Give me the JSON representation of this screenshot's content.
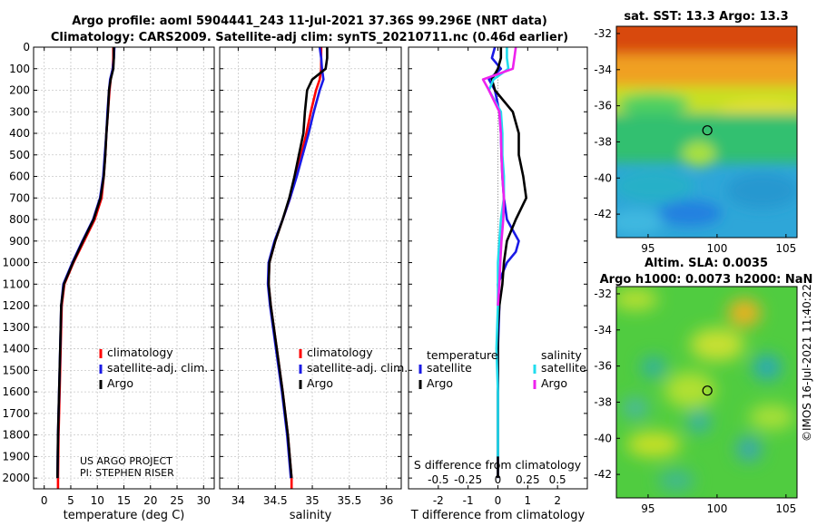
{
  "title": {
    "line1": "Argo profile: aoml 5904441_243 11-Jul-2021 37.36S 99.296E (NRT data)",
    "line2": "Climatology: CARS2009. Satellite-adj clim: synTS_20210711.nc (0.46d earlier)"
  },
  "timestamp": "©IMOS 16-Jul-2021 11:40:22",
  "credit": {
    "line1": "US ARGO PROJECT",
    "line2": "PI: STEPHEN RISER"
  },
  "colors": {
    "climatology": "#ff0000",
    "satellite": "#1a1ae6",
    "argo": "#000000",
    "salinity_satellite": "#22ddee",
    "salinity_argo": "#ee22ee"
  },
  "chart_data": [
    {
      "type": "line",
      "name": "temperature",
      "xlabel": "temperature (deg C)",
      "xlim": [
        -2,
        32
      ],
      "ylim": [
        2050,
        0
      ],
      "xticks": [
        0,
        5,
        10,
        15,
        20,
        25,
        30
      ],
      "yticks": [
        0,
        100,
        200,
        300,
        400,
        500,
        600,
        700,
        800,
        900,
        1000,
        1100,
        1200,
        1300,
        1400,
        1500,
        1600,
        1700,
        1800,
        1900,
        2000
      ],
      "grid": true,
      "legend_position": "lower-right",
      "legend": [
        "climatology",
        "satellite-adj. clim.",
        "Argo"
      ],
      "series": [
        {
          "name": "climatology",
          "color": "#ff0000",
          "depth": [
            0,
            50,
            100,
            150,
            200,
            300,
            400,
            500,
            600,
            700,
            800,
            900,
            1000,
            1100,
            1200,
            1400,
            1600,
            1800,
            2000,
            2050
          ],
          "values": [
            13.0,
            13.0,
            12.9,
            12.5,
            12.3,
            12.0,
            11.7,
            11.5,
            11.2,
            10.8,
            9.5,
            7.5,
            5.5,
            3.8,
            3.3,
            3.1,
            2.9,
            2.7,
            2.6,
            2.6
          ]
        },
        {
          "name": "satellite-adj. clim.",
          "color": "#1a1ae6",
          "depth": [
            0,
            50,
            100,
            150,
            200,
            300,
            400,
            500,
            600,
            700,
            800,
            900,
            1000,
            1100,
            1200,
            1400,
            1600,
            1800,
            2000
          ],
          "values": [
            13.2,
            13.1,
            12.9,
            12.4,
            12.2,
            11.9,
            11.7,
            11.4,
            11.1,
            10.5,
            9.2,
            7.2,
            5.3,
            3.6,
            3.2,
            3.0,
            2.8,
            2.6,
            2.5
          ]
        },
        {
          "name": "Argo",
          "color": "#000000",
          "depth": [
            0,
            50,
            100,
            150,
            200,
            300,
            400,
            500,
            600,
            700,
            800,
            900,
            1000,
            1100,
            1200,
            1400,
            1600,
            1800,
            2000
          ],
          "values": [
            13.1,
            13.1,
            13.0,
            12.5,
            12.2,
            12.0,
            11.7,
            11.5,
            11.2,
            10.6,
            9.3,
            7.3,
            5.4,
            3.7,
            3.2,
            3.0,
            2.8,
            2.6,
            2.5
          ]
        }
      ]
    },
    {
      "type": "line",
      "name": "salinity",
      "xlabel": "salinity",
      "xlim": [
        33.75,
        36.2
      ],
      "ylim": [
        2050,
        0
      ],
      "xticks": [
        34,
        34.5,
        35,
        35.5,
        36
      ],
      "grid": true,
      "legend_position": "lower-right",
      "legend": [
        "climatology",
        "satellite-adj. clim.",
        "Argo"
      ],
      "series": [
        {
          "name": "climatology",
          "color": "#ff0000",
          "depth": [
            0,
            50,
            100,
            150,
            200,
            300,
            400,
            500,
            600,
            700,
            800,
            900,
            1000,
            1100,
            1200,
            1400,
            1600,
            1800,
            2000,
            2050
          ],
          "values": [
            35.12,
            35.12,
            35.12,
            35.1,
            35.05,
            34.98,
            34.92,
            34.85,
            34.78,
            34.7,
            34.6,
            34.5,
            34.42,
            34.41,
            34.44,
            34.52,
            34.6,
            34.67,
            34.72,
            34.72
          ]
        },
        {
          "name": "satellite-adj. clim.",
          "color": "#1a1ae6",
          "depth": [
            0,
            50,
            100,
            150,
            200,
            300,
            400,
            500,
            600,
            700,
            800,
            900,
            1000,
            1100,
            1200,
            1400,
            1600,
            1800,
            2000
          ],
          "values": [
            35.1,
            35.12,
            35.13,
            35.15,
            35.1,
            35.02,
            34.95,
            34.87,
            34.79,
            34.7,
            34.6,
            34.49,
            34.41,
            34.4,
            34.43,
            34.51,
            34.59,
            34.66,
            34.71
          ]
        },
        {
          "name": "Argo",
          "color": "#000000",
          "depth": [
            0,
            50,
            100,
            150,
            200,
            300,
            400,
            500,
            600,
            700,
            800,
            900,
            1000,
            1100,
            1200,
            1400,
            1600,
            1800,
            2000
          ],
          "values": [
            35.2,
            35.2,
            35.18,
            35.0,
            34.93,
            34.9,
            34.88,
            34.82,
            34.76,
            34.69,
            34.6,
            34.5,
            34.42,
            34.41,
            34.44,
            34.52,
            34.6,
            34.67,
            34.72
          ]
        }
      ]
    },
    {
      "type": "line",
      "name": "difference",
      "xlabel": "T difference from climatology",
      "top_xlabel": "S difference from climatology",
      "xlim": [
        -3,
        3
      ],
      "ylim": [
        2050,
        0
      ],
      "xticks": [
        -2,
        -1,
        0,
        1,
        2
      ],
      "top_ticks": [
        "-0.5",
        "-0.25",
        "0",
        "0.25",
        "0.5"
      ],
      "top_tick_values": [
        -2,
        -1,
        0,
        1,
        2
      ],
      "grid": false,
      "legend_temperature_title": "temperature",
      "legend_salinity_title": "salinity",
      "legend_temperature": [
        "satellite",
        "Argo"
      ],
      "legend_salinity": [
        "satellite",
        "Argo"
      ],
      "series": [
        {
          "name": "T satellite",
          "color": "#1a1ae6",
          "depth": [
            0,
            50,
            100,
            150,
            200,
            300,
            400,
            500,
            600,
            700,
            800,
            850,
            900,
            950,
            1000,
            1100,
            1200,
            1400,
            1600,
            1800,
            2000
          ],
          "values": [
            -0.1,
            -0.2,
            0.1,
            -0.3,
            -0.1,
            0.05,
            0.1,
            0.12,
            0.15,
            0.2,
            0.3,
            0.5,
            0.7,
            0.6,
            0.3,
            0.0,
            0.05,
            0.0,
            0.0,
            0.0,
            0.0
          ]
        },
        {
          "name": "T Argo",
          "color": "#000000",
          "depth": [
            0,
            50,
            100,
            150,
            200,
            300,
            400,
            500,
            600,
            700,
            800,
            900,
            1000,
            1100,
            1200,
            1300,
            1400,
            1600,
            1800,
            2000
          ],
          "values": [
            0.1,
            0.1,
            0.0,
            -0.2,
            -0.1,
            0.5,
            0.7,
            0.7,
            0.85,
            0.95,
            0.6,
            0.3,
            0.2,
            0.15,
            0.05,
            0.0,
            0.0,
            0.0,
            0.0,
            0.0
          ]
        },
        {
          "name": "S satellite",
          "color": "#22ddee",
          "depth": [
            0,
            50,
            100,
            150,
            200,
            300,
            400,
            500,
            600,
            700,
            800,
            900,
            1000,
            1100,
            1200,
            1400,
            1600,
            1800,
            1900
          ],
          "values": [
            0.3,
            0.3,
            0.35,
            -0.15,
            -0.3,
            0.1,
            0.15,
            0.15,
            0.2,
            0.2,
            0.1,
            0.05,
            0.0,
            0.0,
            0.0,
            -0.05,
            0.0,
            0.0,
            0.0
          ]
        },
        {
          "name": "S Argo",
          "color": "#ee22ee",
          "depth": [
            0,
            50,
            100,
            150,
            200,
            300,
            400,
            500,
            600,
            700,
            800,
            900,
            1000,
            1100,
            1200
          ],
          "values": [
            0.6,
            0.55,
            0.5,
            -0.5,
            -0.3,
            0.05,
            0.1,
            0.12,
            0.15,
            0.2,
            0.18,
            0.12,
            0.08,
            0.05,
            0.0
          ]
        }
      ]
    },
    {
      "type": "heatmap",
      "name": "sst_map",
      "title": "sat. SST: 13.3 Argo: 13.3",
      "xticks": [
        95,
        100,
        105
      ],
      "yticks": [
        -32,
        -34,
        -36,
        -38,
        -40,
        -42
      ],
      "xlim": [
        92.7,
        105.8
      ],
      "ylim": [
        -43.3,
        -31.6
      ],
      "marker": {
        "lon": 99.296,
        "lat": -37.36
      }
    },
    {
      "type": "heatmap",
      "name": "sla_map",
      "title": "Altim. SLA: 0.0035",
      "subtitle": "Argo h1000: 0.0073 h2000: NaN",
      "xticks": [
        95,
        100,
        105
      ],
      "yticks": [
        -32,
        -34,
        -36,
        -38,
        -40,
        -42
      ],
      "xlim": [
        92.7,
        105.8
      ],
      "ylim": [
        -43.3,
        -31.6
      ],
      "marker": {
        "lon": 99.296,
        "lat": -37.36
      }
    }
  ]
}
